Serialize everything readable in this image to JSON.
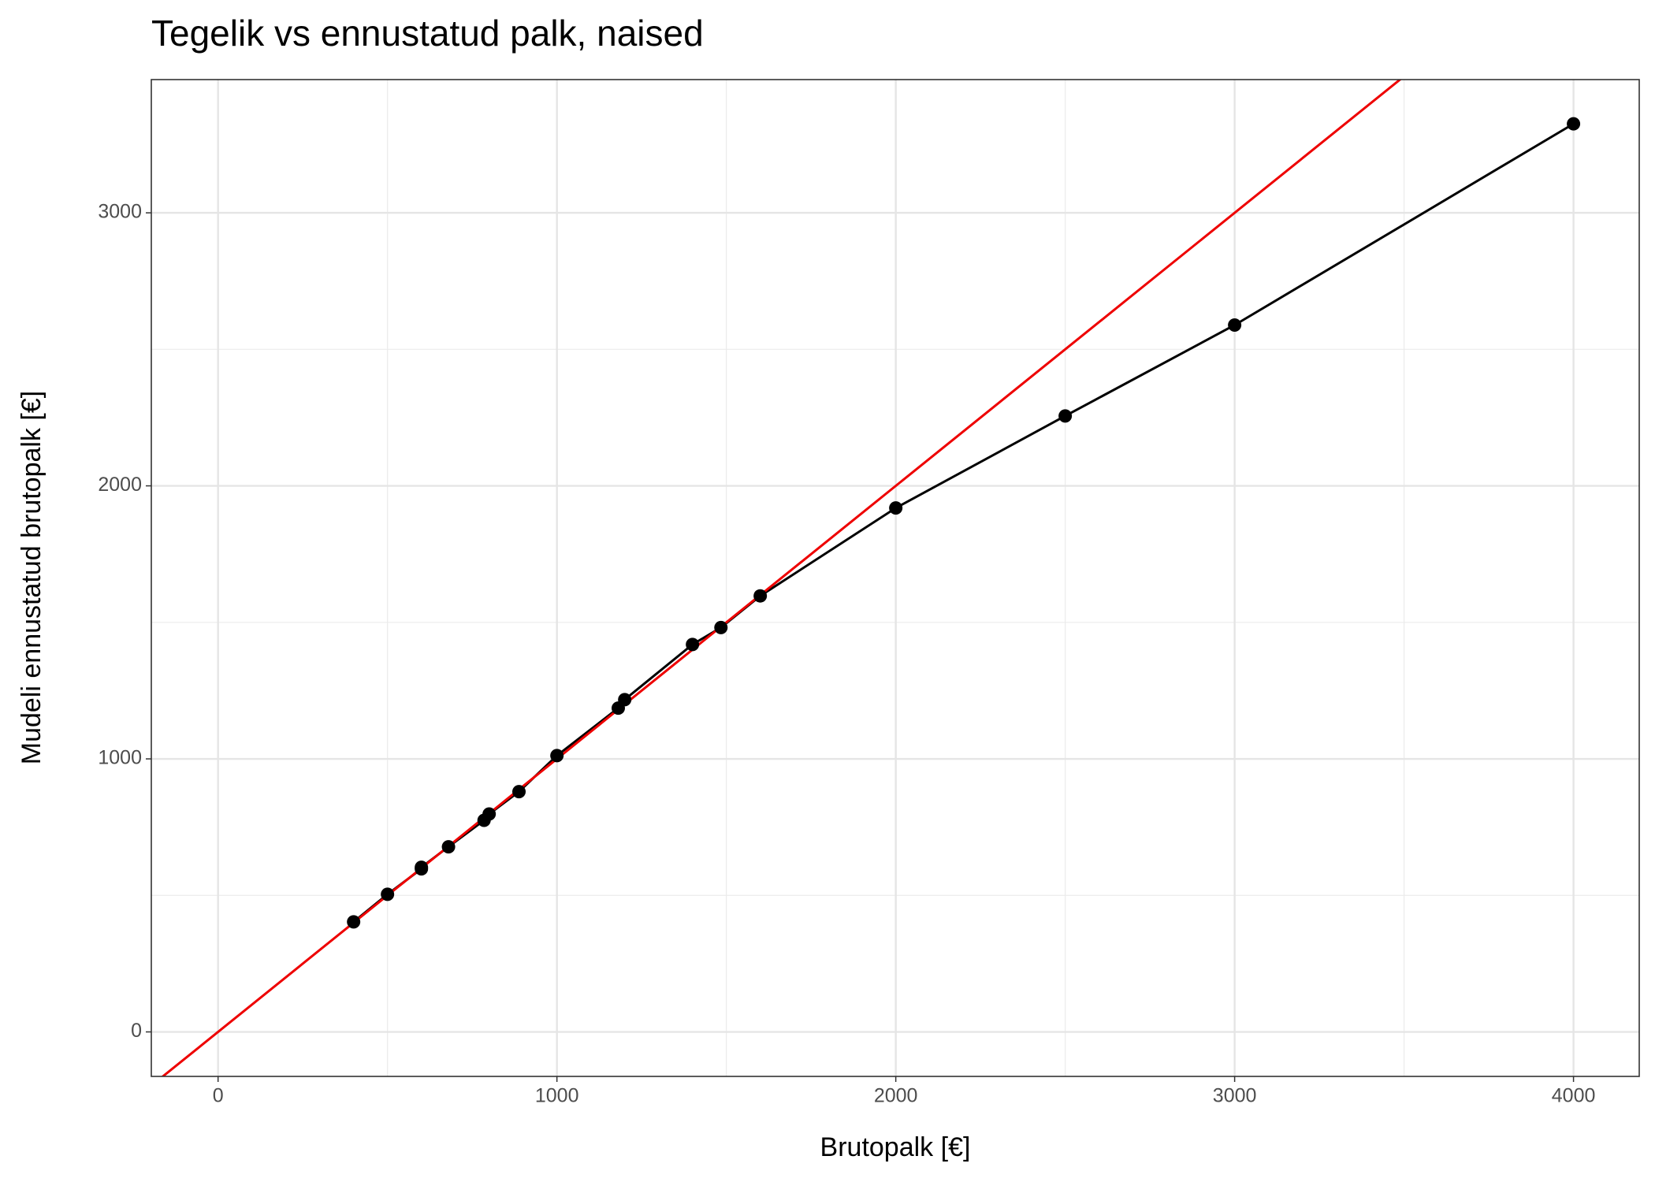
{
  "chart_data": {
    "type": "scatter",
    "title": "Tegelik vs ennustatud palk, naised",
    "xlabel": "Brutopalk [€]",
    "ylabel": "Mudeli ennustatud brutopalk [€]",
    "x": [
      400,
      500,
      600,
      600,
      680,
      785,
      800,
      888,
      1000,
      1181,
      1200,
      1400,
      1484,
      1600,
      2000,
      2500,
      3000,
      4000
    ],
    "values": [
      403,
      504,
      597,
      603,
      678,
      775,
      798,
      880,
      1012,
      1186,
      1217,
      1419,
      1481,
      1597,
      1919,
      2256,
      2589,
      3326
    ],
    "color": "#000000",
    "connect_points": true,
    "reference_line": {
      "slope": 1,
      "intercept": 0,
      "color": "#ee0000"
    },
    "xlim": [
      -197,
      4194
    ],
    "ylim": [
      -163,
      3488
    ],
    "xticks": [
      0,
      1000,
      2000,
      3000,
      4000
    ],
    "yticks": [
      0,
      1000,
      2000,
      3000
    ],
    "xminor": [
      500,
      1500,
      2500,
      3500
    ],
    "yminor": [
      500,
      1500,
      2500
    ],
    "grid": true
  }
}
